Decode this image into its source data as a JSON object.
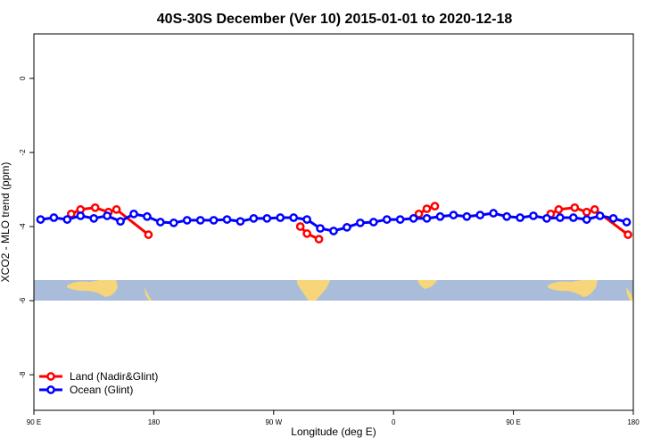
{
  "chart_data": {
    "type": "line",
    "title": "40S-30S December (Ver 10)   2015-01-01 to 2020-12-18",
    "xlabel": "Longitude (deg E)",
    "ylabel": "XCO2 - MLO trend (ppm)",
    "xlim": [
      90,
      540
    ],
    "ylim": [
      -8.96,
      1.2
    ],
    "xticks": [
      {
        "value": 90,
        "label": "90 E"
      },
      180,
      {
        "value": 270,
        "label": "90 W"
      },
      {
        "value": 360,
        "label": "0"
      },
      {
        "value": 450,
        "label": "90 E"
      },
      {
        "value": 540,
        "label": "180"
      }
    ],
    "yticks": [
      0,
      -2,
      -4,
      -6,
      -8
    ],
    "legend": "bottom-left",
    "series": [
      {
        "name": "Land (Nadir&Glint)",
        "color": "#ff0000",
        "x": [
          118,
          125,
          136,
          146,
          152,
          176,
          null,
          290,
          295,
          304,
          null,
          379,
          385,
          391,
          null,
          478,
          484,
          496,
          505,
          511,
          536
        ],
        "values": [
          -3.66,
          -3.54,
          -3.49,
          -3.61,
          -3.54,
          -4.22,
          null,
          -4.0,
          -4.19,
          -4.34,
          null,
          -3.66,
          -3.52,
          -3.45,
          null,
          -3.66,
          -3.54,
          -3.49,
          -3.61,
          -3.54,
          -4.22
        ]
      },
      {
        "name": "Ocean (Glint)",
        "color": "#0000ff",
        "x": [
          95,
          105,
          115,
          125,
          135,
          145,
          155,
          165,
          175,
          185,
          195,
          205,
          215,
          225,
          235,
          245,
          255,
          265,
          275,
          285,
          295,
          305,
          315,
          325,
          335,
          345,
          355,
          365,
          375,
          385,
          395,
          405,
          415,
          425,
          435,
          445,
          455,
          465,
          475,
          485,
          495,
          505,
          515,
          525,
          535
        ],
        "values": [
          -3.81,
          -3.76,
          -3.81,
          -3.71,
          -3.78,
          -3.71,
          -3.86,
          -3.66,
          -3.73,
          -3.88,
          -3.9,
          -3.83,
          -3.83,
          -3.83,
          -3.81,
          -3.86,
          -3.78,
          -3.78,
          -3.76,
          -3.76,
          -3.81,
          -4.05,
          -4.12,
          -4.02,
          -3.9,
          -3.88,
          -3.81,
          -3.81,
          -3.78,
          -3.78,
          -3.73,
          -3.69,
          -3.73,
          -3.69,
          -3.64,
          -3.73,
          -3.76,
          -3.71,
          -3.78,
          -3.76,
          -3.76,
          -3.81,
          -3.71,
          -3.78,
          -3.88
        ]
      }
    ]
  }
}
